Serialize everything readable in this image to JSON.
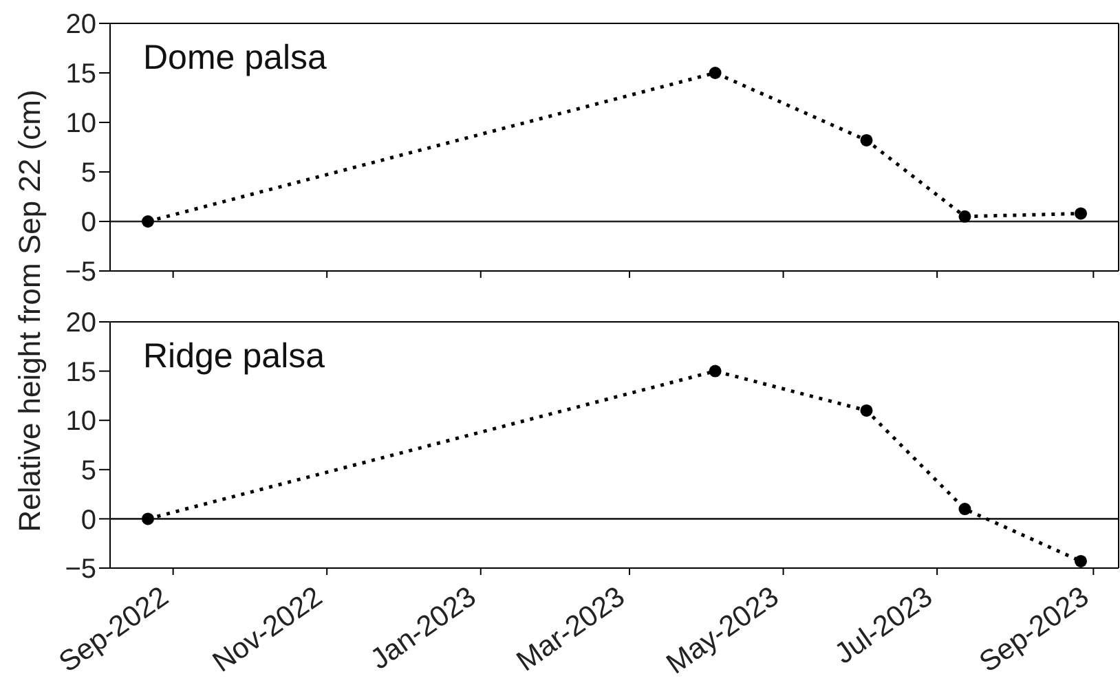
{
  "chart_data": [
    {
      "type": "line",
      "title": "Dome palsa",
      "ylabel": "Relative height from Sep 22 (cm)",
      "x": [
        "2022-08-22",
        "2023-04-04",
        "2023-06-03",
        "2023-07-12",
        "2023-08-27"
      ],
      "series": [
        {
          "color": "#000000",
          "values": [
            0,
            15,
            8.2,
            0.5,
            0.8
          ]
        }
      ],
      "xlim": [
        "2022-08-07",
        "2023-09-11"
      ],
      "xticks": [
        {
          "value": "2022-09-01",
          "label": null
        },
        {
          "value": "2022-11-01",
          "label": null
        },
        {
          "value": "2023-01-01",
          "label": null
        },
        {
          "value": "2023-03-01",
          "label": null
        },
        {
          "value": "2023-05-01",
          "label": null
        },
        {
          "value": "2023-07-01",
          "label": null
        },
        {
          "value": "2023-09-01",
          "label": null
        }
      ],
      "ylim": [
        -5,
        20
      ],
      "yticks": [
        {
          "value": -5,
          "label": "−5"
        },
        0,
        5,
        10,
        15,
        20
      ],
      "ref_lines": [
        {
          "axis": "y",
          "value": 0
        }
      ],
      "tick_labels": "y",
      "marker": "circle",
      "line_style": "dotted"
    },
    {
      "type": "line",
      "title": "Ridge palsa",
      "x": [
        "2022-08-22",
        "2023-04-04",
        "2023-06-03",
        "2023-07-12",
        "2023-08-27"
      ],
      "series": [
        {
          "color": "#000000",
          "values": [
            0,
            15,
            11,
            1,
            -4.3
          ]
        }
      ],
      "xlim": [
        "2022-08-07",
        "2023-09-11"
      ],
      "xticks": [
        {
          "value": "2022-09-01",
          "label": "Sep-2022"
        },
        {
          "value": "2022-11-01",
          "label": "Nov-2022"
        },
        {
          "value": "2023-01-01",
          "label": "Jan-2023"
        },
        {
          "value": "2023-03-01",
          "label": "Mar-2023"
        },
        {
          "value": "2023-05-01",
          "label": "May-2023"
        },
        {
          "value": "2023-07-01",
          "label": "Jul-2023"
        },
        {
          "value": "2023-09-01",
          "label": "Sep-2023"
        }
      ],
      "ylim": [
        -5,
        20
      ],
      "yticks": [
        {
          "value": -5,
          "label": "−5"
        },
        0,
        5,
        10,
        15,
        20
      ],
      "ref_lines": [
        {
          "axis": "y",
          "value": 0
        }
      ],
      "marker": "circle",
      "line_style": "dotted"
    }
  ]
}
